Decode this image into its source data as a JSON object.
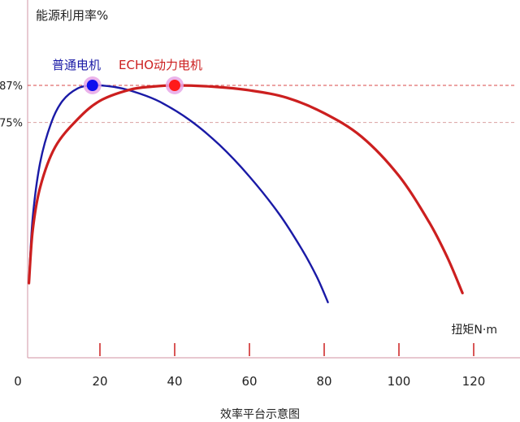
{
  "chart_data": {
    "type": "line",
    "title": "",
    "ylabel": "能源利用率%",
    "xlabel_caption": "效率平台示意图",
    "x_unit_label": "扭矩N·m",
    "xlim": [
      0,
      130
    ],
    "x_ticks": [
      0,
      20,
      40,
      60,
      80,
      100,
      120
    ],
    "x_tick_labels": [
      "0",
      "20",
      "40",
      "60",
      "80",
      "100",
      "120"
    ],
    "ylim": [
      0,
      100
    ],
    "y_ref_lines": [
      {
        "value": 87,
        "label": "87%",
        "color": "#d94a4a"
      },
      {
        "value": 75,
        "label": "75%",
        "color": "#d9a0a0"
      }
    ],
    "grid": false,
    "legend": "top-left",
    "series": [
      {
        "name": "普通电机",
        "color": "#1a1aa6",
        "x": [
          1,
          2,
          4,
          7,
          10,
          14,
          18,
          22,
          26,
          30,
          36,
          44,
          52,
          60,
          68,
          74,
          78,
          81
        ],
        "y": [
          23,
          44,
          62,
          75,
          82,
          86,
          87,
          86.8,
          86,
          84.6,
          81.7,
          75.8,
          67.7,
          57.5,
          45.3,
          34,
          25.1,
          16.8
        ],
        "peak": {
          "x": 18,
          "y": 87
        }
      },
      {
        "name": "ECHO动力电机",
        "color": "#cc1f1f",
        "x": [
          1,
          2,
          4,
          8,
          14,
          20,
          28,
          34,
          40,
          50,
          60,
          70,
          80,
          90,
          100,
          108,
          113,
          117
        ],
        "y": [
          23,
          40,
          54,
          67,
          76,
          82,
          85.6,
          86.6,
          87,
          86.6,
          85.4,
          83,
          78,
          70.4,
          57.7,
          42.9,
          31.2,
          19.8
        ],
        "peak": {
          "x": 40,
          "y": 87
        }
      }
    ]
  }
}
